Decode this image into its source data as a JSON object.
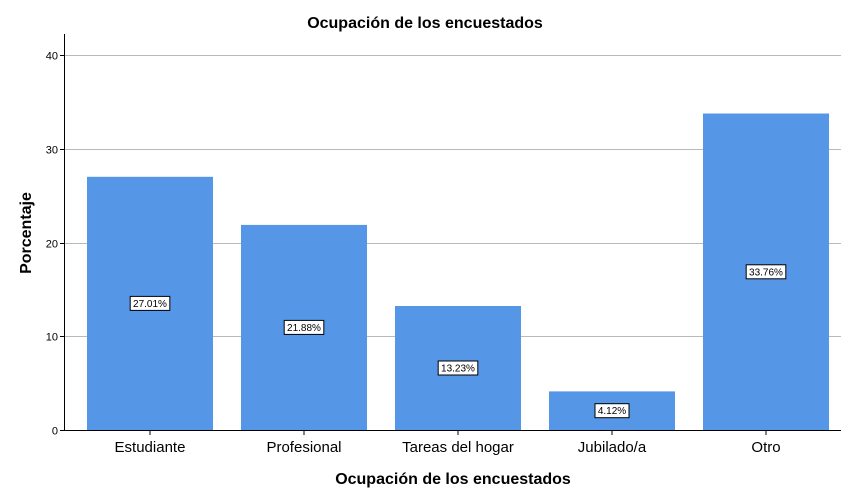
{
  "chart_data": {
    "type": "bar",
    "title": "Ocupación de los encuestados",
    "xlabel": "Ocupación de los encuestados",
    "ylabel": "Porcentaje",
    "categories": [
      "Estudiante",
      "Profesional",
      "Tareas del hogar",
      "Jubilado/a",
      "Otro"
    ],
    "values": [
      27.01,
      21.88,
      13.23,
      4.12,
      33.76
    ],
    "data_labels": [
      "27.01%",
      "21.88%",
      "13.23%",
      "4.12%",
      "33.76%"
    ],
    "ylim": [
      0,
      40
    ],
    "yticks": [
      0,
      10,
      20,
      30,
      40
    ],
    "grid": true,
    "bar_color": "#5596e6"
  }
}
